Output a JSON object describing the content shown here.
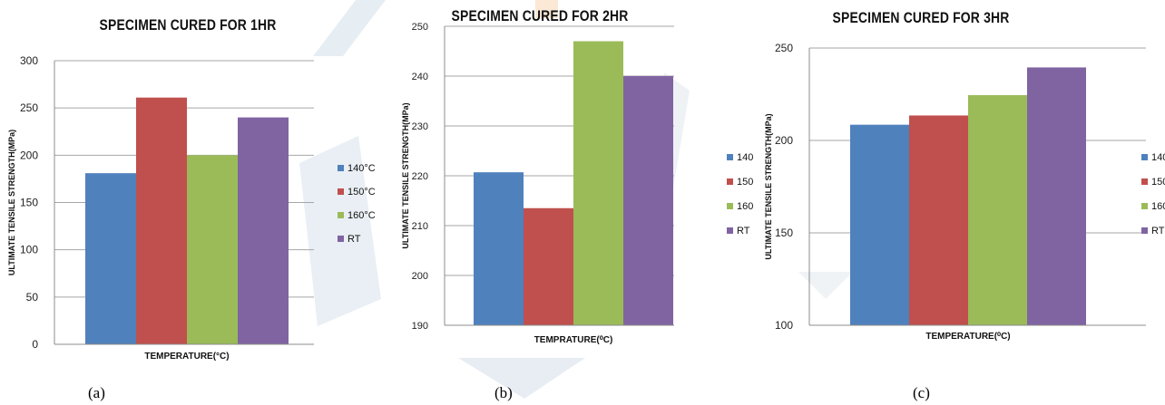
{
  "figure": {
    "captions": [
      "(a)",
      "(b)",
      "(c)"
    ]
  },
  "chart_data": [
    {
      "type": "bar",
      "title": "SPECIMEN CURED FOR 1HR",
      "xlabel": "TEMPERATURE(°C)",
      "ylabel": "ULTIMATE TENSILE STRENGTH(MPa)",
      "ylim": [
        0,
        300
      ],
      "yticks": [
        0,
        50,
        100,
        150,
        200,
        250,
        300
      ],
      "grid": true,
      "legend_position": "right",
      "series": [
        {
          "name": "140°C",
          "color": "#4f81bd",
          "values": [
            181
          ]
        },
        {
          "name": "150°C",
          "color": "#c0504d",
          "values": [
            261
          ]
        },
        {
          "name": "160°C",
          "color": "#9bbb59",
          "values": [
            200
          ]
        },
        {
          "name": "RT",
          "color": "#8064a2",
          "values": [
            240
          ]
        }
      ]
    },
    {
      "type": "bar",
      "title": "SPECIMEN CURED FOR 2HR",
      "xlabel": "TEMPRATURE(⁰C)",
      "ylabel": "ULTIMATE TENSILE STRENGTH(MPa)",
      "ylim": [
        190,
        250
      ],
      "yticks": [
        190,
        200,
        210,
        220,
        230,
        240,
        250
      ],
      "grid": true,
      "legend_position": "right",
      "series": [
        {
          "name": "140",
          "color": "#4f81bd",
          "values": [
            220.7
          ]
        },
        {
          "name": "150",
          "color": "#c0504d",
          "values": [
            213.5
          ]
        },
        {
          "name": "160",
          "color": "#9bbb59",
          "values": [
            247
          ]
        },
        {
          "name": "RT",
          "color": "#8064a2",
          "values": [
            240
          ]
        }
      ]
    },
    {
      "type": "bar",
      "title": "SPECIMEN CURED FOR 3HR",
      "xlabel": "TEMPERATURE(⁰C)",
      "ylabel": "ULTIMATE TENSILE STRENGTH(MPa)",
      "ylim": [
        100,
        250
      ],
      "yticks": [
        100,
        150,
        200,
        250
      ],
      "grid": true,
      "legend_position": "right",
      "series": [
        {
          "name": "140",
          "color": "#4f81bd",
          "values": [
            208.5
          ]
        },
        {
          "name": "150",
          "color": "#c0504d",
          "values": [
            213.5
          ]
        },
        {
          "name": "160",
          "color": "#9bbb59",
          "values": [
            224.5
          ]
        },
        {
          "name": "RT",
          "color": "#8064a2",
          "values": [
            239.5
          ]
        }
      ]
    }
  ]
}
